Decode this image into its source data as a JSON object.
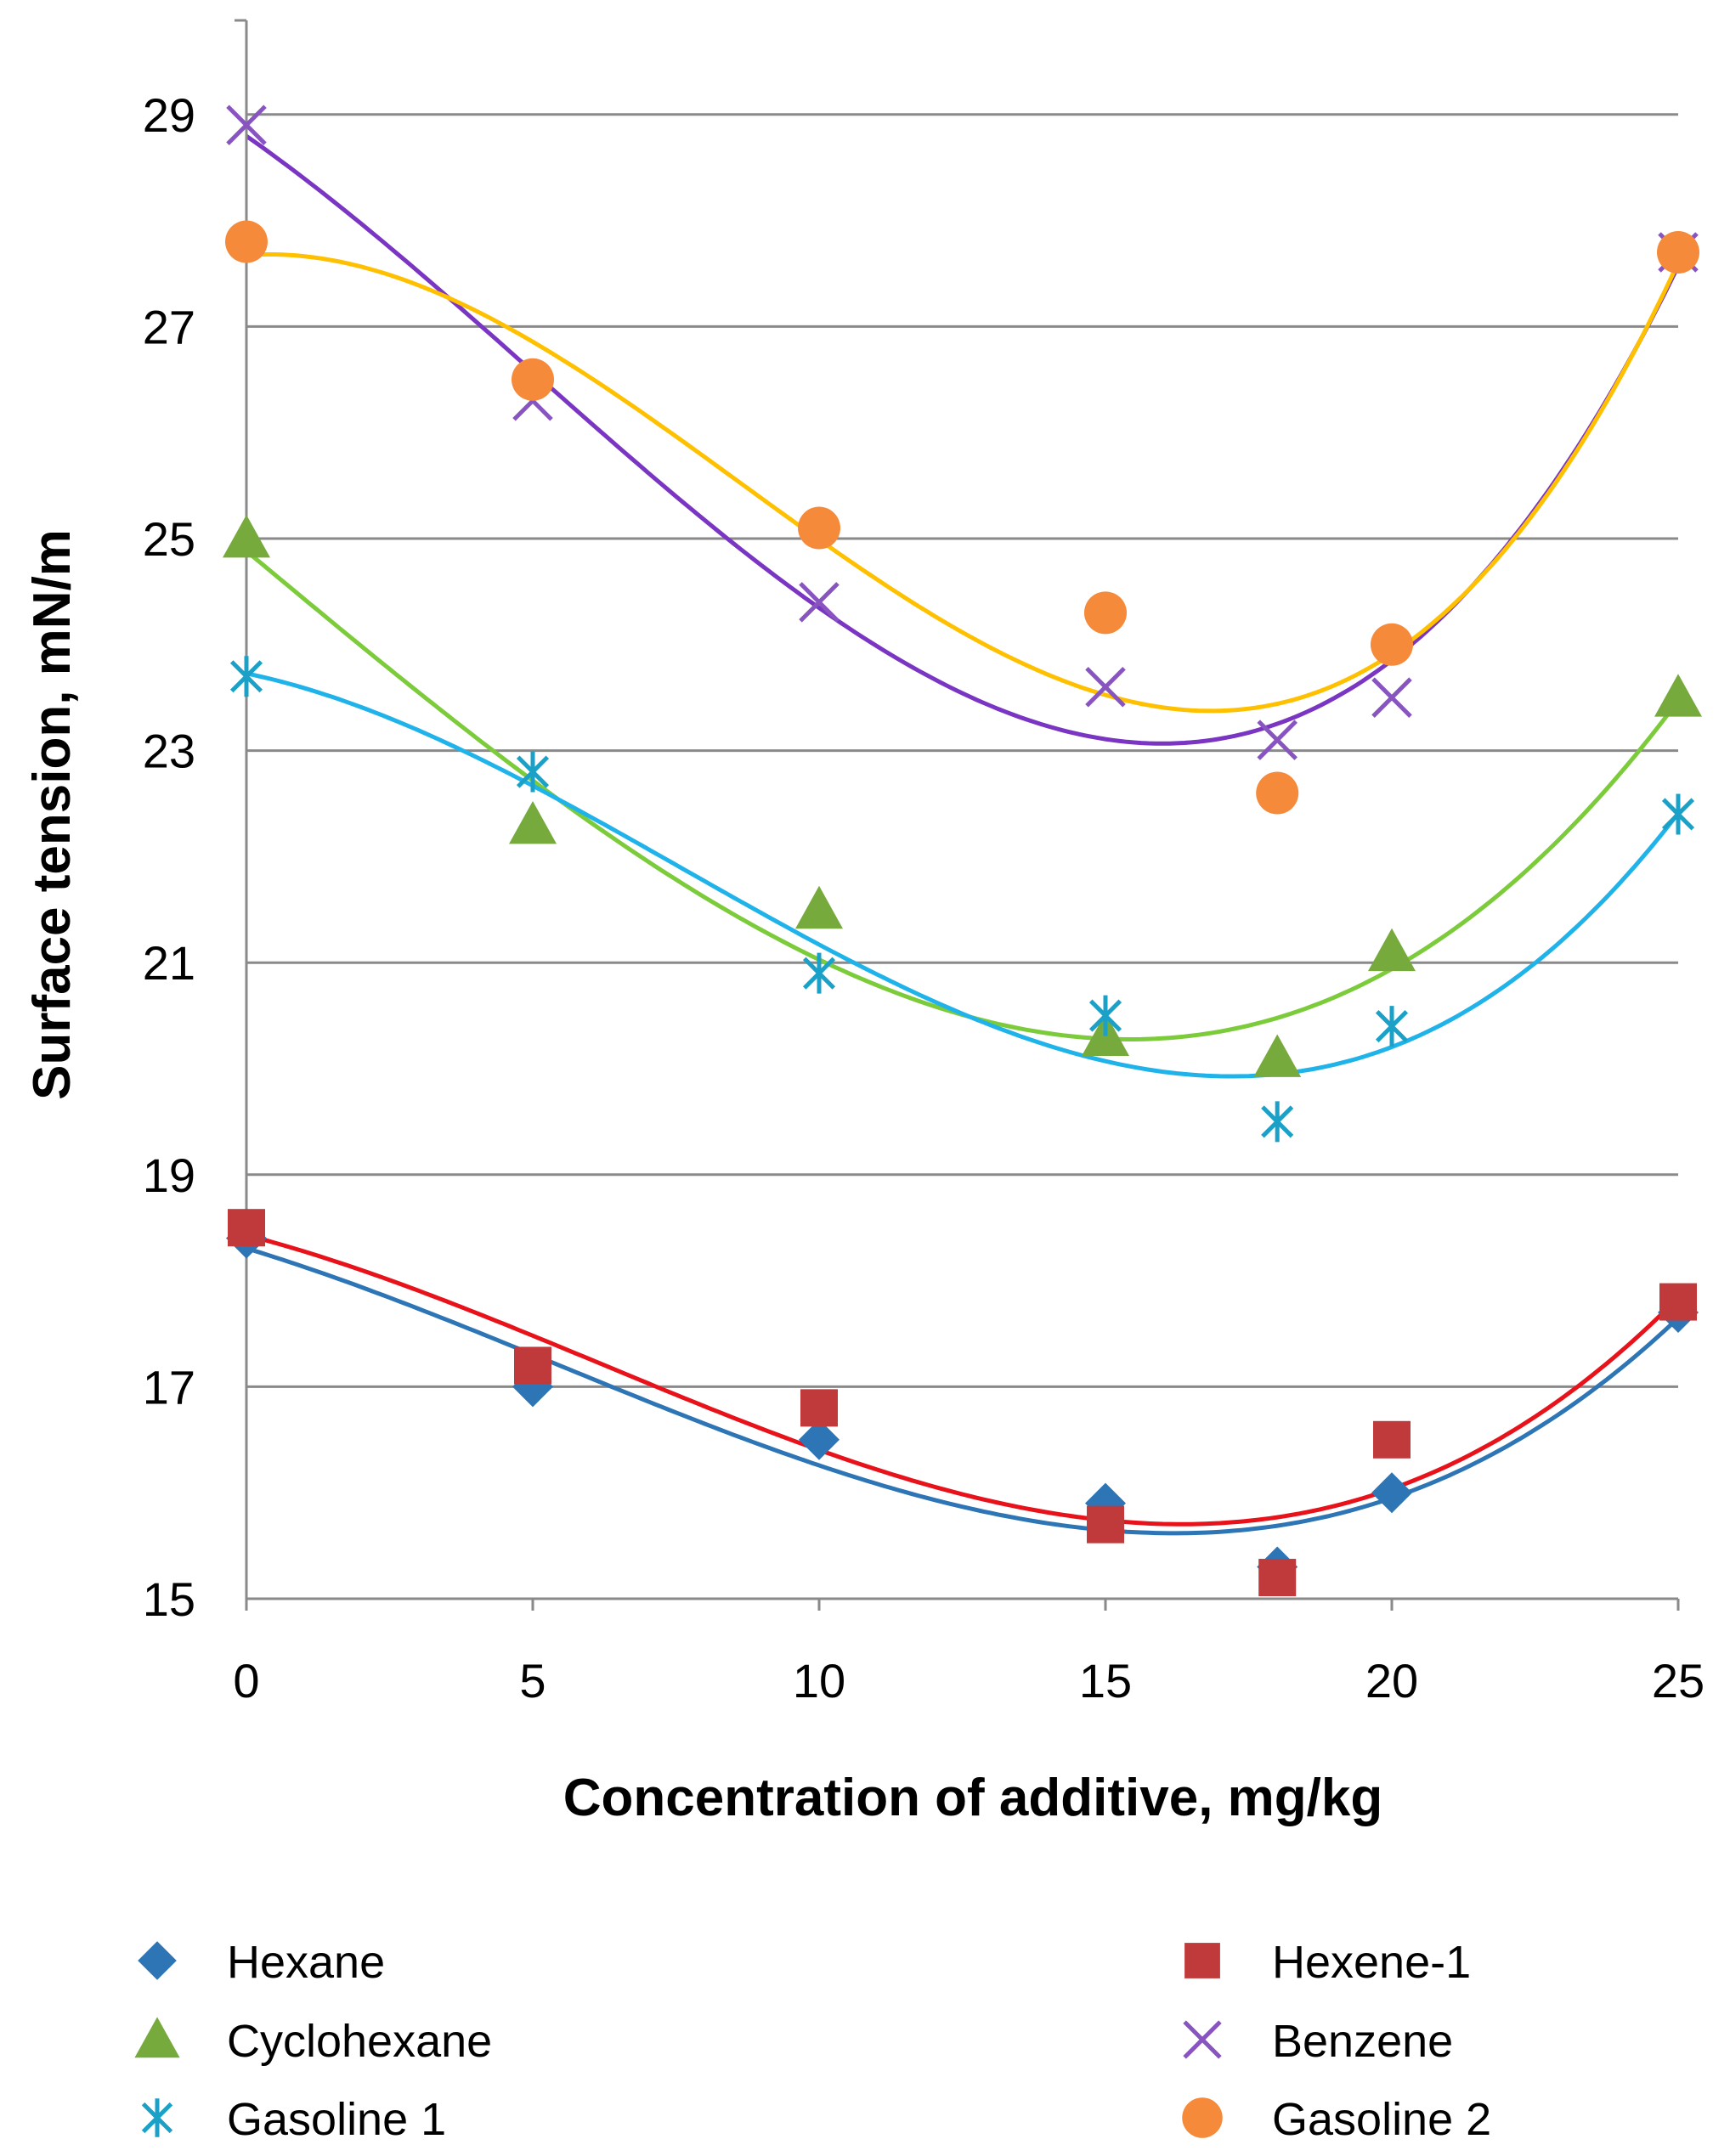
{
  "chart_data": {
    "type": "scatter",
    "title": "",
    "xlabel": "Concentration of additive, mg/kg",
    "ylabel": "Surface tension, mN/m",
    "xlim": [
      0,
      25
    ],
    "ylim": [
      15,
      30
    ],
    "xticks": [
      0,
      5,
      10,
      15,
      20,
      25
    ],
    "yticks": [
      15,
      17,
      19,
      21,
      23,
      25,
      27,
      29
    ],
    "grid": true,
    "legend_position": "bottom",
    "x": [
      0,
      5,
      10,
      15,
      18,
      20,
      25
    ],
    "series": [
      {
        "name": "Hexane",
        "marker": "diamond",
        "color": "#2E75B6",
        "trend_color": "#2E75B6",
        "values": [
          18.4,
          17.0,
          16.5,
          15.9,
          15.3,
          16.0,
          17.7
        ]
      },
      {
        "name": "Hexene-1",
        "marker": "square",
        "color": "#C0393B",
        "trend_color": "#E8121B",
        "values": [
          18.5,
          17.2,
          16.8,
          15.7,
          15.2,
          16.5,
          17.8
        ]
      },
      {
        "name": "Cyclohexane",
        "marker": "triangle",
        "color": "#77AA3C",
        "trend_color": "#7CCB3A",
        "values": [
          25.0,
          22.3,
          21.5,
          20.3,
          20.1,
          21.1,
          23.5
        ]
      },
      {
        "name": "Benzene",
        "marker": "x",
        "color": "#8855C0",
        "trend_color": "#7A36C2",
        "values": [
          28.9,
          26.3,
          24.4,
          23.6,
          23.1,
          23.5,
          27.7
        ]
      },
      {
        "name": "Gasoline 1",
        "marker": "asterisk",
        "color": "#1BA1C8",
        "trend_color": "#1FB3EA",
        "values": [
          23.7,
          22.8,
          20.9,
          20.5,
          19.5,
          20.4,
          22.4
        ]
      },
      {
        "name": "Gasoline 2",
        "marker": "circle",
        "color": "#F58A3A",
        "trend_color": "#FFC000",
        "values": [
          27.8,
          26.5,
          25.1,
          24.3,
          22.6,
          24.0,
          27.7
        ]
      }
    ]
  }
}
